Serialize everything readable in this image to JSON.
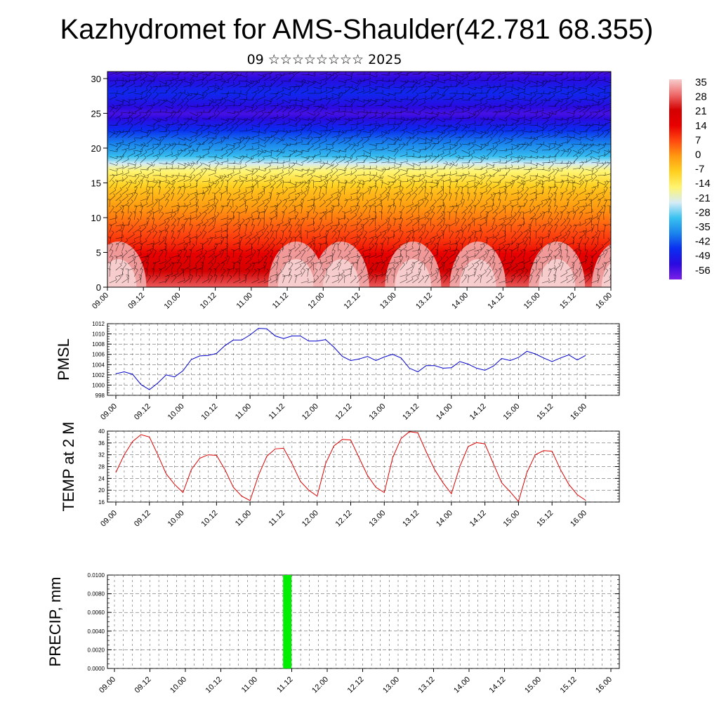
{
  "header": {
    "title": "Kazhydromet for AMS-Shaulder(42.781 68.355)",
    "subtitle": "09 ☆☆☆☆☆☆☆☆ 2025"
  },
  "colors": {
    "pmsl_line": "#0000cc",
    "temp_line": "#dd0000",
    "precip_bar": "#00ee00",
    "grid": "#333333",
    "colormap": [
      "#7b1fe6",
      "#2a0ae0",
      "#0a2ef0",
      "#1a84ec",
      "#39c2f0",
      "#d6ecf6",
      "#fff470",
      "#ffd020",
      "#ff9a10",
      "#ff4a10",
      "#e80000",
      "#d40000",
      "#ee6a6a",
      "#f7cccc"
    ]
  },
  "chart_data": [
    {
      "type": "heatmap",
      "title": "",
      "xlabel": "",
      "ylabel": "",
      "x_tick_labels": [
        "09.00",
        "09.12",
        "10.00",
        "10.12",
        "11.00",
        "11.12",
        "12.00",
        "12.12",
        "13.00",
        "13.12",
        "14.00",
        "14.12",
        "15.00",
        "15.12",
        "16.00"
      ],
      "y_ticks": [
        0,
        5,
        10,
        15,
        20,
        25,
        30
      ],
      "ylim": [
        0,
        31
      ],
      "colorbar": {
        "labels": [
          "35",
          "28",
          "21",
          "14",
          "7",
          "0",
          "-7",
          "-14",
          "-21",
          "-28",
          "-35",
          "-42",
          "-49",
          "-56"
        ],
        "range": [
          -63,
          42
        ]
      },
      "profile": {
        "levels": [
          0,
          3,
          6,
          10,
          14,
          17,
          19,
          22,
          25,
          28,
          31
        ],
        "values": [
          33,
          24,
          14,
          5,
          -4,
          -16,
          -32,
          -44,
          -58,
          -48,
          -58
        ]
      },
      "warm_spots": [
        0.6,
        10.5,
        13.0,
        17.0,
        20.6,
        25.0,
        28.5
      ],
      "wind_barbs": true
    },
    {
      "type": "line",
      "title": "",
      "ylabel": "PMSL",
      "ylim": [
        998,
        1012
      ],
      "y_ticks": [
        998,
        1000,
        1002,
        1004,
        1006,
        1008,
        1010,
        1012
      ],
      "x_tick_labels": [
        "09.00",
        "09.12",
        "10.00",
        "10.12",
        "11.00",
        "11.12",
        "12.00",
        "12.12",
        "13.00",
        "13.12",
        "14.00",
        "14.12",
        "15.00",
        "15.12",
        "16.00"
      ],
      "series": [
        {
          "values": [
            1002.2,
            1002.6,
            1002.1,
            1000.1,
            999.1,
            1000.4,
            1002.0,
            1001.6,
            1002.8,
            1005.0,
            1005.7,
            1005.8,
            1006.2,
            1007.7,
            1008.8,
            1008.8,
            1009.8,
            1011.1,
            1011.0,
            1009.6,
            1009.1,
            1009.6,
            1009.6,
            1008.6,
            1008.6,
            1008.9,
            1007.4,
            1005.6,
            1004.8,
            1005.1,
            1005.6,
            1004.8,
            1005.5,
            1006.0,
            1005.3,
            1003.3,
            1002.6,
            1003.8,
            1003.8,
            1003.3,
            1003.4,
            1004.6,
            1004.1,
            1003.3,
            1002.9,
            1003.7,
            1005.2,
            1004.8,
            1005.4,
            1006.6,
            1006.1,
            1005.3,
            1004.6,
            1005.3,
            1005.9,
            1004.9,
            1005.8
          ]
        }
      ]
    },
    {
      "type": "line",
      "title": "",
      "ylabel": "TEMP at 2 M",
      "ylim": [
        16,
        40
      ],
      "y_ticks": [
        16,
        20,
        24,
        28,
        32,
        36,
        40
      ],
      "x_tick_labels": [
        "09.00",
        "09.12",
        "10.00",
        "10.12",
        "11.00",
        "11.12",
        "12.00",
        "12.12",
        "13.00",
        "13.12",
        "14.00",
        "14.12",
        "15.00",
        "15.12",
        "16.00"
      ],
      "series": [
        {
          "values": [
            26.0,
            32.0,
            36.5,
            38.8,
            38.0,
            32.0,
            25.5,
            22.0,
            19.2,
            27.0,
            30.8,
            32.0,
            31.8,
            27.0,
            21.0,
            18.0,
            16.5,
            25.0,
            31.5,
            34.0,
            34.2,
            29.0,
            23.0,
            20.0,
            18.0,
            29.0,
            35.0,
            37.2,
            37.0,
            31.0,
            25.0,
            21.0,
            19.2,
            31.0,
            37.5,
            39.8,
            39.4,
            33.0,
            27.0,
            22.5,
            18.8,
            28.0,
            34.8,
            36.1,
            35.7,
            29.0,
            22.5,
            19.5,
            16.2,
            26.0,
            32.0,
            33.4,
            33.2,
            27.0,
            22.0,
            18.5,
            16.6
          ]
        }
      ]
    },
    {
      "type": "bar",
      "title": "",
      "ylabel": "PRECIP, mm",
      "ylim": [
        0,
        0.01
      ],
      "y_tick_labels": [
        "0.0000",
        "0.0020",
        "0.0040",
        "0.0060",
        "0.0080",
        "0.0100"
      ],
      "x_tick_labels": [
        "09.00",
        "09.12",
        "10.00",
        "10.12",
        "11.00",
        "11.12",
        "12.00",
        "12.12",
        "13.00",
        "13.12",
        "14.00",
        "14.12",
        "15.00",
        "15.12",
        "16.00"
      ],
      "bars": [
        {
          "x_index": 19.5,
          "value": 0.01
        }
      ]
    }
  ]
}
